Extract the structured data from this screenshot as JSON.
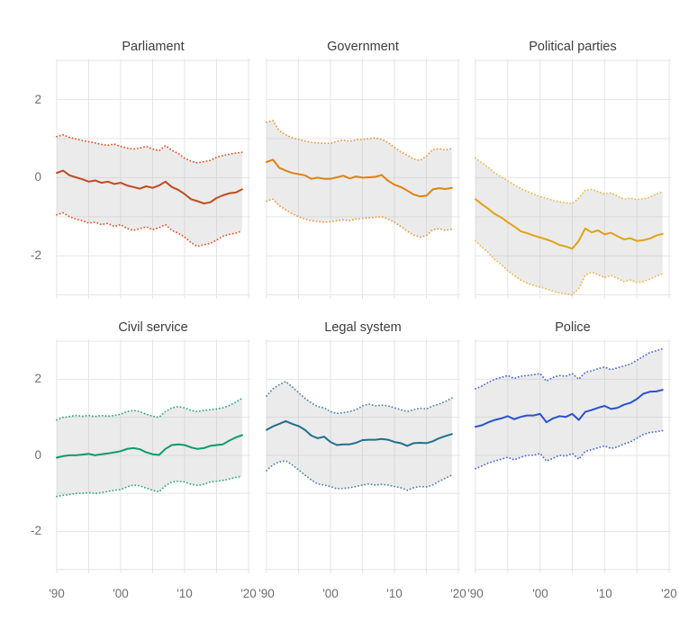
{
  "page": {
    "background": "#ffffff"
  },
  "style": {
    "gridline_color": "#e5e5e5",
    "band_fill": "rgba(188,188,188,0.30)",
    "tick_label_color": "#6e6e6e",
    "title_color": "#3d3d3d"
  },
  "axes": {
    "y_tick_labels": [
      "2",
      "0",
      "-2"
    ],
    "y_tick_values": [
      2,
      0,
      -2
    ],
    "x_tick_labels": [
      "'90",
      "'00",
      "'10",
      "'20"
    ],
    "x_tick_years": [
      1990,
      2000,
      2010,
      2020
    ],
    "x_gridline_years": [
      1990,
      1995,
      2000,
      2005,
      2010,
      2015,
      2020
    ],
    "y_gridline_values": [
      -3,
      -2,
      -1,
      0,
      1,
      2,
      3
    ],
    "xlim": [
      1990,
      2020
    ],
    "ylim": [
      -3.1,
      3.05
    ],
    "grid": true,
    "legend": "none"
  },
  "years": [
    1990,
    1991,
    1992,
    1993,
    1994,
    1995,
    1996,
    1997,
    1998,
    1999,
    2000,
    2001,
    2002,
    2003,
    2004,
    2005,
    2006,
    2007,
    2008,
    2009,
    2010,
    2011,
    2012,
    2013,
    2014,
    2015,
    2016,
    2017,
    2018,
    2019
  ],
  "chart_data": [
    {
      "type": "line",
      "title": "Parliament",
      "row": 0,
      "col": 0,
      "line_color": "#c04a21",
      "ci_color": "#de552c",
      "series": [
        {
          "name": "trend",
          "values": [
            0.12,
            0.18,
            0.06,
            0.01,
            -0.04,
            -0.1,
            -0.07,
            -0.13,
            -0.1,
            -0.16,
            -0.13,
            -0.2,
            -0.24,
            -0.28,
            -0.22,
            -0.26,
            -0.2,
            -0.1,
            -0.24,
            -0.31,
            -0.42,
            -0.55,
            -0.6,
            -0.66,
            -0.63,
            -0.52,
            -0.45,
            -0.4,
            -0.38,
            -0.3
          ]
        },
        {
          "name": "upper",
          "values": [
            1.05,
            1.1,
            1.03,
            0.99,
            0.95,
            0.92,
            0.89,
            0.85,
            0.83,
            0.86,
            0.8,
            0.76,
            0.73,
            0.76,
            0.8,
            0.73,
            0.69,
            0.82,
            0.7,
            0.62,
            0.5,
            0.42,
            0.38,
            0.41,
            0.44,
            0.52,
            0.57,
            0.6,
            0.63,
            0.65
          ]
        },
        {
          "name": "lower",
          "values": [
            -0.95,
            -0.9,
            -1.0,
            -1.06,
            -1.1,
            -1.16,
            -1.14,
            -1.2,
            -1.17,
            -1.25,
            -1.2,
            -1.3,
            -1.35,
            -1.3,
            -1.26,
            -1.33,
            -1.28,
            -1.2,
            -1.35,
            -1.42,
            -1.52,
            -1.66,
            -1.76,
            -1.72,
            -1.68,
            -1.6,
            -1.5,
            -1.45,
            -1.42,
            -1.36
          ]
        }
      ]
    },
    {
      "type": "line",
      "title": "Government",
      "row": 0,
      "col": 1,
      "line_color": "#e08214",
      "ci_color": "#e89b45",
      "series": [
        {
          "name": "trend",
          "values": [
            0.4,
            0.46,
            0.25,
            0.18,
            0.12,
            0.09,
            0.06,
            -0.03,
            0.0,
            -0.03,
            -0.03,
            0.01,
            0.05,
            -0.02,
            0.03,
            0.0,
            0.01,
            0.02,
            0.07,
            -0.08,
            -0.18,
            -0.24,
            -0.33,
            -0.43,
            -0.48,
            -0.46,
            -0.3,
            -0.27,
            -0.29,
            -0.26
          ]
        },
        {
          "name": "upper",
          "values": [
            1.42,
            1.46,
            1.2,
            1.1,
            1.02,
            0.98,
            0.94,
            0.9,
            0.89,
            0.88,
            0.88,
            0.93,
            0.96,
            0.93,
            0.97,
            0.98,
            1.0,
            1.02,
            0.98,
            0.9,
            0.78,
            0.66,
            0.58,
            0.48,
            0.44,
            0.55,
            0.72,
            0.74,
            0.71,
            0.75
          ]
        },
        {
          "name": "lower",
          "values": [
            -0.6,
            -0.55,
            -0.72,
            -0.82,
            -0.92,
            -1.0,
            -1.06,
            -1.1,
            -1.12,
            -1.14,
            -1.13,
            -1.1,
            -1.08,
            -1.1,
            -1.06,
            -1.04,
            -1.03,
            -1.01,
            -1.0,
            -1.06,
            -1.14,
            -1.25,
            -1.37,
            -1.47,
            -1.52,
            -1.48,
            -1.33,
            -1.31,
            -1.35,
            -1.32
          ]
        }
      ]
    },
    {
      "type": "line",
      "title": "Political parties",
      "row": 0,
      "col": 2,
      "line_color": "#e2a214",
      "ci_color": "#ecb84e",
      "series": [
        {
          "name": "trend",
          "values": [
            -0.55,
            -0.68,
            -0.8,
            -0.93,
            -1.02,
            -1.14,
            -1.25,
            -1.37,
            -1.42,
            -1.48,
            -1.53,
            -1.58,
            -1.64,
            -1.72,
            -1.76,
            -1.82,
            -1.62,
            -1.3,
            -1.4,
            -1.35,
            -1.45,
            -1.41,
            -1.5,
            -1.58,
            -1.55,
            -1.62,
            -1.6,
            -1.56,
            -1.48,
            -1.44
          ]
        },
        {
          "name": "upper",
          "values": [
            0.5,
            0.38,
            0.26,
            0.12,
            0.02,
            -0.08,
            -0.18,
            -0.28,
            -0.35,
            -0.42,
            -0.48,
            -0.53,
            -0.58,
            -0.62,
            -0.64,
            -0.66,
            -0.52,
            -0.32,
            -0.3,
            -0.36,
            -0.42,
            -0.39,
            -0.47,
            -0.55,
            -0.52,
            -0.56,
            -0.54,
            -0.5,
            -0.42,
            -0.36
          ]
        },
        {
          "name": "lower",
          "values": [
            -1.62,
            -1.78,
            -1.92,
            -2.1,
            -2.22,
            -2.38,
            -2.5,
            -2.62,
            -2.7,
            -2.76,
            -2.8,
            -2.85,
            -2.9,
            -2.95,
            -2.97,
            -3.0,
            -2.84,
            -2.5,
            -2.42,
            -2.48,
            -2.56,
            -2.5,
            -2.58,
            -2.66,
            -2.62,
            -2.68,
            -2.66,
            -2.6,
            -2.52,
            -2.46
          ]
        }
      ]
    },
    {
      "type": "line",
      "title": "Civil service",
      "row": 1,
      "col": 0,
      "line_color": "#11996e",
      "ci_color": "#2ea885",
      "series": [
        {
          "name": "trend",
          "values": [
            -0.06,
            -0.02,
            0.0,
            0.0,
            0.02,
            0.04,
            0.0,
            0.03,
            0.05,
            0.08,
            0.11,
            0.17,
            0.19,
            0.16,
            0.08,
            0.03,
            0.01,
            0.17,
            0.27,
            0.29,
            0.27,
            0.21,
            0.17,
            0.19,
            0.25,
            0.27,
            0.29,
            0.39,
            0.47,
            0.53
          ]
        },
        {
          "name": "upper",
          "values": [
            0.93,
            1.0,
            1.02,
            1.05,
            1.03,
            1.05,
            1.02,
            1.05,
            1.03,
            1.05,
            1.08,
            1.15,
            1.18,
            1.15,
            1.08,
            1.03,
            1.0,
            1.15,
            1.25,
            1.28,
            1.25,
            1.18,
            1.15,
            1.18,
            1.2,
            1.22,
            1.25,
            1.31,
            1.4,
            1.5
          ]
        },
        {
          "name": "lower",
          "values": [
            -1.08,
            -1.05,
            -1.03,
            -1.0,
            -1.0,
            -0.98,
            -1.0,
            -0.98,
            -0.95,
            -0.92,
            -0.9,
            -0.83,
            -0.78,
            -0.8,
            -0.86,
            -0.92,
            -0.96,
            -0.8,
            -0.7,
            -0.68,
            -0.7,
            -0.76,
            -0.79,
            -0.76,
            -0.7,
            -0.68,
            -0.66,
            -0.62,
            -0.58,
            -0.55
          ]
        }
      ]
    },
    {
      "type": "line",
      "title": "Legal system",
      "row": 1,
      "col": 1,
      "line_color": "#226e8e",
      "ci_color": "#4e87a5",
      "series": [
        {
          "name": "trend",
          "values": [
            0.67,
            0.76,
            0.83,
            0.9,
            0.83,
            0.77,
            0.67,
            0.52,
            0.45,
            0.49,
            0.35,
            0.27,
            0.29,
            0.29,
            0.33,
            0.4,
            0.41,
            0.41,
            0.43,
            0.41,
            0.35,
            0.32,
            0.25,
            0.32,
            0.33,
            0.32,
            0.37,
            0.45,
            0.51,
            0.56
          ]
        },
        {
          "name": "upper",
          "values": [
            1.56,
            1.75,
            1.86,
            1.94,
            1.8,
            1.65,
            1.5,
            1.38,
            1.28,
            1.25,
            1.15,
            1.1,
            1.12,
            1.15,
            1.2,
            1.3,
            1.35,
            1.3,
            1.32,
            1.3,
            1.25,
            1.2,
            1.15,
            1.2,
            1.24,
            1.22,
            1.3,
            1.35,
            1.42,
            1.51
          ]
        },
        {
          "name": "lower",
          "values": [
            -0.4,
            -0.25,
            -0.17,
            -0.14,
            -0.25,
            -0.38,
            -0.52,
            -0.65,
            -0.75,
            -0.78,
            -0.82,
            -0.88,
            -0.87,
            -0.85,
            -0.82,
            -0.78,
            -0.75,
            -0.78,
            -0.76,
            -0.78,
            -0.82,
            -0.85,
            -0.92,
            -0.85,
            -0.82,
            -0.83,
            -0.78,
            -0.68,
            -0.6,
            -0.52
          ]
        }
      ]
    },
    {
      "type": "line",
      "title": "Police",
      "row": 1,
      "col": 2,
      "line_color": "#2a51cd",
      "ci_color": "#4a6cd9",
      "series": [
        {
          "name": "trend",
          "values": [
            0.75,
            0.79,
            0.87,
            0.93,
            0.97,
            1.03,
            0.95,
            1.01,
            1.05,
            1.05,
            1.09,
            0.87,
            0.97,
            1.03,
            1.01,
            1.09,
            0.93,
            1.14,
            1.19,
            1.25,
            1.3,
            1.22,
            1.25,
            1.33,
            1.38,
            1.48,
            1.62,
            1.67,
            1.68,
            1.72
          ]
        },
        {
          "name": "upper",
          "values": [
            1.75,
            1.82,
            1.92,
            2.0,
            2.05,
            2.1,
            2.02,
            2.08,
            2.1,
            2.12,
            2.15,
            1.95,
            2.05,
            2.1,
            2.08,
            2.15,
            2.0,
            2.18,
            2.22,
            2.28,
            2.32,
            2.25,
            2.3,
            2.35,
            2.4,
            2.5,
            2.6,
            2.7,
            2.75,
            2.8
          ]
        },
        {
          "name": "lower",
          "values": [
            -0.35,
            -0.28,
            -0.2,
            -0.15,
            -0.1,
            -0.05,
            -0.12,
            -0.05,
            0.0,
            0.0,
            0.05,
            -0.15,
            -0.08,
            0.0,
            -0.02,
            0.05,
            -0.1,
            0.1,
            0.15,
            0.2,
            0.25,
            0.18,
            0.22,
            0.3,
            0.35,
            0.45,
            0.55,
            0.6,
            0.62,
            0.65
          ]
        }
      ]
    }
  ]
}
